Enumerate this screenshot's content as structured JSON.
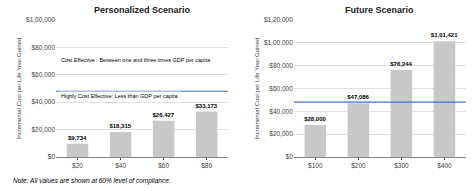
{
  "chart_data": [
    {
      "type": "bar",
      "title": "Personalized Scenario",
      "categories": [
        "$20",
        "$40",
        "$60",
        "$80"
      ],
      "values": [
        9734,
        18315,
        26427,
        33173
      ],
      "value_labels": [
        "$9,734",
        "$18,315",
        "$26,427",
        "$33,173"
      ],
      "data_labels": true,
      "color": "#c8c8c8",
      "ylabel": "Incremental Cost per Life Year Gained",
      "ylim": [
        0,
        100000
      ],
      "yticks": [
        {
          "value": 0,
          "label": "$0"
        },
        {
          "value": 20000,
          "label": "$20,000"
        },
        {
          "value": 40000,
          "label": "$40,000"
        },
        {
          "value": 60000,
          "label": "$60,000"
        },
        {
          "value": 80000,
          "label": "$80,000"
        },
        {
          "value": 100000,
          "label": "$1,00,000"
        }
      ],
      "grid": true,
      "hline": {
        "y": 48000,
        "color": "#4472c4"
      },
      "annotations": [
        "Cost Effective : Between one and three times GDP per capita",
        "Highly Cost Effective: Less than GDP per capita"
      ]
    },
    {
      "type": "bar",
      "title": "Future Scenario",
      "categories": [
        "$100",
        "$200",
        "$300",
        "$400"
      ],
      "values": [
        28000,
        47086,
        76244,
        101421
      ],
      "value_labels": [
        "$28,000",
        "$47,086",
        "$76,244",
        "$1,01,421"
      ],
      "data_labels": true,
      "color": "#c8c8c8",
      "ylabel": "Incremental Cost per Life Year Gained",
      "ylim": [
        0,
        120000
      ],
      "yticks": [
        {
          "value": 0,
          "label": "$0"
        },
        {
          "value": 20000,
          "label": "$20,000"
        },
        {
          "value": 40000,
          "label": "$40,000"
        },
        {
          "value": 60000,
          "label": "$60,000"
        },
        {
          "value": 80000,
          "label": "$80,000"
        },
        {
          "value": 100000,
          "label": "$1,00,000"
        },
        {
          "value": 120000,
          "label": "$1,20,000"
        }
      ],
      "grid": true,
      "hline": {
        "y": 48000,
        "color": "#4472c4"
      }
    }
  ],
  "note": "Note: All values are shown at 60% level of compliance."
}
